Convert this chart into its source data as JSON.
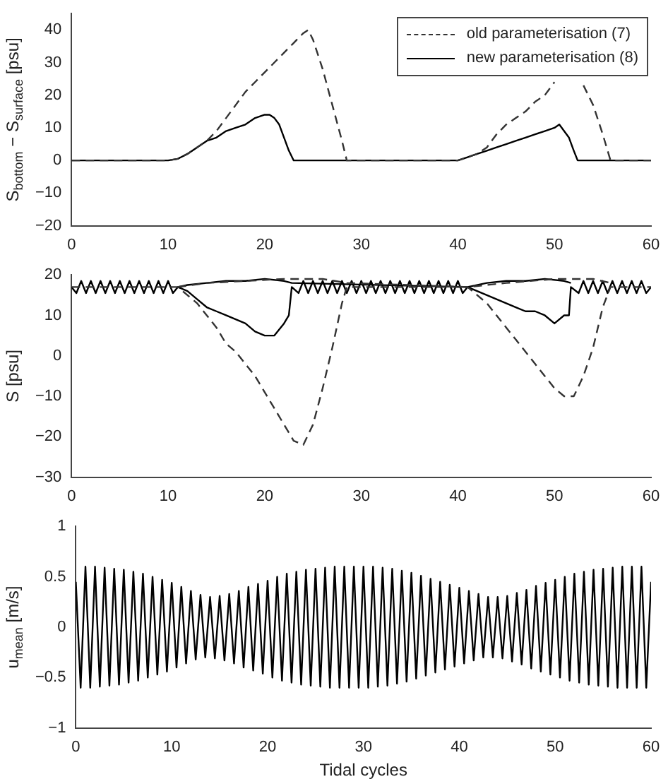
{
  "chart_data": [
    {
      "type": "line",
      "ylabel": "S$_{bottom}$ − S$_{surface}$ [psu]",
      "xlim": [
        0,
        60
      ],
      "xticks": [
        0,
        10,
        20,
        30,
        40,
        50,
        60
      ],
      "ylim": [
        -20,
        45
      ],
      "yticks": [
        {
          "value": -20,
          "label": "−20"
        },
        {
          "value": -10,
          "label": "−10"
        },
        0,
        10,
        20,
        30,
        40
      ],
      "grid": false,
      "legend": "top right",
      "marker": "none",
      "series": [
        {
          "name": "old parameterisation (7)",
          "color": "#333333",
          "line_style": "dashed",
          "x": [
            0,
            2,
            4,
            6,
            8,
            10,
            11,
            12,
            13,
            14,
            15,
            16,
            17,
            18,
            19,
            20,
            21,
            22,
            23,
            24,
            24.5,
            25,
            26,
            27,
            28,
            28.5,
            30,
            35,
            40,
            41,
            42,
            43,
            44,
            45,
            46,
            47,
            48,
            49,
            50,
            51,
            53,
            54,
            55,
            55.8,
            57,
            60
          ],
          "values": [
            0,
            0,
            0,
            0,
            0,
            0,
            0.5,
            2,
            4,
            6,
            9,
            13,
            17,
            21,
            24,
            27,
            30,
            33,
            36,
            39,
            40,
            37,
            28,
            17,
            6,
            0,
            0,
            0,
            0,
            1,
            2,
            4,
            8,
            11,
            13,
            15,
            18,
            20,
            24,
            null,
            23,
            17,
            8,
            0,
            0,
            0
          ]
        },
        {
          "name": "new parameterisation (8)",
          "color": "#000000",
          "line_style": "solid",
          "x": [
            0,
            2,
            4,
            6,
            8,
            10,
            11,
            12,
            13,
            14,
            15,
            16,
            17,
            18,
            19,
            20,
            20.5,
            21,
            21.5,
            22,
            22.5,
            23,
            30,
            40,
            41,
            42,
            43,
            44,
            45,
            46,
            47,
            48,
            49,
            50,
            50.5,
            51,
            51.5,
            52,
            52.4,
            60
          ],
          "values": [
            0,
            0,
            0,
            0,
            0,
            0,
            0.5,
            2,
            4,
            6,
            7,
            9,
            10,
            11,
            13,
            14,
            14,
            13,
            11,
            7,
            3,
            0,
            0,
            0,
            1,
            2,
            3,
            4,
            5,
            6,
            7,
            8,
            9,
            10,
            11,
            9,
            7,
            3,
            0,
            0
          ]
        }
      ]
    },
    {
      "type": "line",
      "ylabel": "S [psu]",
      "xlim": [
        0,
        60
      ],
      "xticks": [
        0,
        10,
        20,
        30,
        40,
        50,
        60
      ],
      "ylim": [
        -30,
        20
      ],
      "yticks": [
        {
          "value": -30,
          "label": "−30"
        },
        {
          "value": -20,
          "label": "−20"
        },
        {
          "value": -10,
          "label": "−10"
        },
        0,
        10,
        20
      ],
      "grid": false,
      "marker": "none",
      "series": [
        {
          "color": "#333333",
          "line_style": "dashed",
          "x": [
            0,
            11,
            12,
            13,
            14,
            15,
            16,
            17,
            18,
            19,
            20,
            21,
            22,
            23,
            24,
            25,
            26,
            27,
            28,
            28.5,
            41,
            42,
            43,
            44,
            45,
            46,
            47,
            48,
            49,
            50,
            51,
            52,
            53,
            54,
            55,
            55.8,
            60
          ],
          "values": [
            17,
            17,
            15,
            13,
            10,
            7,
            3,
            1,
            -2,
            -5,
            -9,
            -13,
            -17,
            -21,
            -22,
            -17,
            -8,
            2,
            13,
            17,
            17,
            15,
            13,
            10,
            7,
            4,
            1,
            -2,
            -5,
            -8,
            -10,
            -10,
            -5,
            2,
            12,
            17,
            17
          ]
        },
        {
          "color": "#333333",
          "line_style": "dashed",
          "x": [
            11,
            14,
            18,
            22,
            26,
            28.5,
            41,
            45,
            50,
            54,
            55.8
          ],
          "values": [
            17,
            18,
            18.5,
            19,
            19,
            18,
            17,
            18,
            19,
            19,
            18
          ]
        },
        {
          "color": "#000000",
          "line_style": "solid",
          "x": [
            0,
            0.5,
            1,
            1.5,
            2,
            2.5,
            3,
            3.5,
            4,
            4.5,
            5,
            5.5,
            6,
            6.5,
            7,
            7.5,
            8,
            8.5,
            9,
            9.5,
            10,
            10.5,
            11,
            12,
            13,
            14,
            15,
            16,
            17,
            18,
            19,
            20,
            21,
            22,
            22.5,
            22.8,
            23.5,
            24,
            24.5,
            25,
            25.5,
            26,
            26.5,
            27,
            27.5,
            28,
            28.5,
            29,
            29.5,
            30,
            30.5,
            31,
            31.5,
            32,
            32.5,
            33,
            33.5,
            34,
            34.5,
            35,
            35.5,
            36,
            36.5,
            37,
            37.5,
            38,
            38.5,
            39,
            39.5,
            40,
            40.5,
            41,
            42,
            43,
            44,
            45,
            46,
            47,
            48,
            49,
            50,
            51,
            51.5,
            51.7,
            52.5,
            53,
            53.5,
            54,
            54.5,
            55,
            55.5,
            56,
            56.5,
            57,
            57.5,
            58,
            58.5,
            59,
            59.5,
            60
          ],
          "values": [
            17,
            15.5,
            18.5,
            15.5,
            18.5,
            15.5,
            18.5,
            15.5,
            18.5,
            15.5,
            18.5,
            15.5,
            18.5,
            15.5,
            18.5,
            15.5,
            18.5,
            15.5,
            18.5,
            15.5,
            18.5,
            15.5,
            17,
            16,
            14,
            12,
            11,
            10,
            9,
            8,
            6,
            5,
            5,
            8,
            10,
            17,
            15.5,
            18.5,
            15.5,
            18.5,
            15.5,
            18.5,
            15.5,
            18.5,
            15.5,
            18.5,
            15.5,
            18.5,
            15.5,
            18.5,
            15.5,
            18.5,
            15.5,
            18.5,
            15.5,
            18.5,
            15.5,
            18.5,
            15.5,
            18.5,
            15.5,
            18.5,
            15.5,
            18.5,
            15.5,
            18.5,
            15.5,
            18.5,
            15.5,
            18.5,
            15.5,
            17,
            16,
            15,
            14,
            13,
            12,
            11,
            11,
            10,
            8,
            10,
            10,
            17,
            15.5,
            18.5,
            15.5,
            18.5,
            15.5,
            18.5,
            15.5,
            18.5,
            15.5,
            18.5,
            15.5,
            18.5,
            15.5,
            18.5,
            15.5,
            17
          ]
        },
        {
          "color": "#000000",
          "line_style": "solid",
          "x": [
            11,
            12,
            14,
            16,
            18,
            20,
            22,
            22.8,
            41,
            43,
            45,
            47,
            49,
            51,
            51.7
          ],
          "values": [
            17,
            17.5,
            18,
            18.5,
            18.5,
            19,
            18.5,
            18,
            17,
            18,
            18.5,
            18.5,
            19,
            18.5,
            18
          ]
        }
      ]
    },
    {
      "type": "line",
      "ylabel": "u$_{mean}$ [m/s]",
      "xlabel": "Tidal cycles",
      "xlim": [
        0,
        60
      ],
      "xticks": [
        0,
        10,
        20,
        30,
        40,
        50,
        60
      ],
      "ylim": [
        -1,
        1
      ],
      "yticks": [
        {
          "value": -1,
          "label": "−1"
        },
        {
          "value": -0.5,
          "label": "−0.5"
        },
        0,
        0.5,
        1
      ],
      "grid": false,
      "marker": "none",
      "x": [
        0,
        0.5,
        1,
        1.5,
        2,
        2.5,
        3,
        3.5,
        4,
        4.5,
        5,
        5.5,
        6,
        6.5,
        7,
        7.5,
        8,
        8.5,
        9,
        9.5,
        10,
        10.5,
        11,
        11.5,
        12,
        12.5,
        13,
        13.5,
        14,
        14.5,
        15,
        15.5,
        16,
        16.5,
        17,
        17.5,
        18,
        18.5,
        19,
        19.5,
        20,
        20.5,
        21,
        21.5,
        22,
        22.5,
        23,
        23.5,
        24,
        24.5,
        25,
        25.5,
        26,
        26.5,
        27,
        27.5,
        28,
        28.5,
        29,
        29.5,
        30,
        30.5,
        31,
        31.5,
        32,
        32.5,
        33,
        33.5,
        34,
        34.5,
        35,
        35.5,
        36,
        36.5,
        37,
        37.5,
        38,
        38.5,
        39,
        39.5,
        40,
        40.5,
        41,
        41.5,
        42,
        42.5,
        43,
        43.5,
        44,
        44.5,
        45,
        45.5,
        46,
        46.5,
        47,
        47.5,
        48,
        48.5,
        49,
        49.5,
        50,
        50.5,
        51,
        51.5,
        52,
        52.5,
        53,
        53.5,
        54,
        54.5,
        55,
        55.5,
        56,
        56.5,
        57,
        57.5,
        58,
        58.5,
        59,
        59.5,
        60
      ],
      "series": [
        {
          "color": "#000000",
          "line_style": "solid",
          "values": [
            0.45,
            -0.6,
            0.6,
            -0.6,
            0.6,
            -0.59,
            0.59,
            -0.58,
            0.58,
            -0.57,
            0.57,
            -0.55,
            0.55,
            -0.53,
            0.53,
            -0.5,
            0.5,
            -0.47,
            0.47,
            -0.44,
            0.44,
            -0.4,
            0.4,
            -0.36,
            0.36,
            -0.32,
            0.32,
            -0.3,
            0.3,
            -0.31,
            0.31,
            -0.33,
            0.33,
            -0.36,
            0.36,
            -0.4,
            0.4,
            -0.43,
            0.43,
            -0.46,
            0.46,
            -0.5,
            0.5,
            -0.53,
            0.53,
            -0.55,
            0.55,
            -0.57,
            0.57,
            -0.58,
            0.58,
            -0.59,
            0.59,
            -0.6,
            0.6,
            -0.6,
            0.6,
            -0.6,
            0.6,
            -0.6,
            0.6,
            -0.6,
            0.6,
            -0.59,
            0.59,
            -0.58,
            0.58,
            -0.56,
            0.56,
            -0.54,
            0.54,
            -0.51,
            0.51,
            -0.48,
            0.48,
            -0.45,
            0.45,
            -0.42,
            0.42,
            -0.39,
            0.39,
            -0.36,
            0.36,
            -0.33,
            0.33,
            -0.3,
            0.3,
            -0.3,
            0.3,
            -0.31,
            0.31,
            -0.34,
            0.34,
            -0.37,
            0.37,
            -0.41,
            0.41,
            -0.44,
            0.44,
            -0.47,
            0.47,
            -0.5,
            0.5,
            -0.53,
            0.53,
            -0.55,
            0.55,
            -0.57,
            0.57,
            -0.58,
            0.58,
            -0.59,
            0.59,
            -0.6,
            0.6,
            -0.6,
            0.6,
            -0.6,
            0.6,
            -0.6,
            0.45
          ]
        }
      ]
    }
  ]
}
